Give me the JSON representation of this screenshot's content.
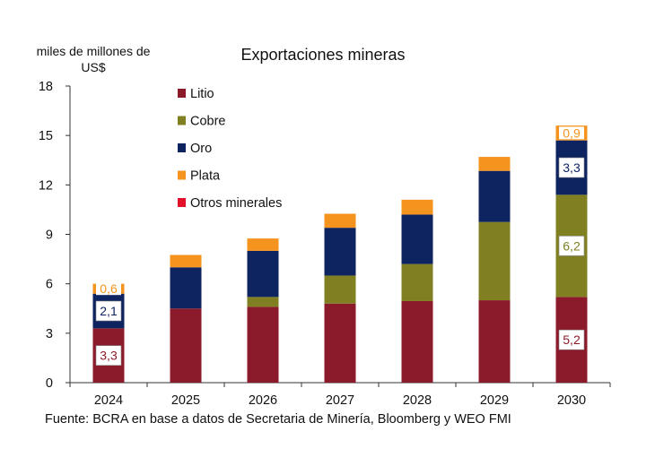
{
  "unit_label": "miles de millones de US$",
  "source_note": "Fuente: BCRA en base a datos de Secretaria de Minería, Bloomberg y WEO FMI",
  "colors": {
    "Litio": "#8b1a2b",
    "Cobre": "#808023",
    "Oro": "#0e2460",
    "Plata": "#f5931f",
    "Otros minerales": "#e3102a"
  },
  "chart_data": {
    "type": "bar",
    "stacked": true,
    "title": "Exportaciones mineras",
    "ylabel": "miles de millones de US$",
    "ylim": [
      0,
      18
    ],
    "yticks": [
      0,
      3,
      6,
      9,
      12,
      15,
      18
    ],
    "categories": [
      "2024",
      "2025",
      "2026",
      "2027",
      "2028",
      "2029",
      "2030"
    ],
    "legend_position": "top-left",
    "grid": false,
    "series": [
      {
        "name": "Litio",
        "values": [
          3.3,
          4.5,
          4.6,
          4.8,
          4.95,
          5.0,
          5.2
        ]
      },
      {
        "name": "Cobre",
        "values": [
          0.0,
          0.0,
          0.6,
          1.7,
          2.25,
          4.75,
          6.2
        ]
      },
      {
        "name": "Oro",
        "values": [
          2.1,
          2.5,
          2.8,
          2.9,
          3.0,
          3.1,
          3.3
        ]
      },
      {
        "name": "Plata",
        "values": [
          0.6,
          0.75,
          0.75,
          0.85,
          0.9,
          0.85,
          0.9
        ]
      },
      {
        "name": "Otros minerales",
        "values": [
          0,
          0,
          0,
          0,
          0,
          0,
          0
        ]
      }
    ],
    "data_labels": [
      {
        "category": "2024",
        "series": "Litio",
        "text": "3,3"
      },
      {
        "category": "2024",
        "series": "Oro",
        "text": "2,1"
      },
      {
        "category": "2024",
        "series": "Plata",
        "text": "0,6"
      },
      {
        "category": "2030",
        "series": "Litio",
        "text": "5,2"
      },
      {
        "category": "2030",
        "series": "Cobre",
        "text": "6,2"
      },
      {
        "category": "2030",
        "series": "Oro",
        "text": "3,3"
      },
      {
        "category": "2030",
        "series": "Plata",
        "text": "0,9"
      }
    ]
  }
}
